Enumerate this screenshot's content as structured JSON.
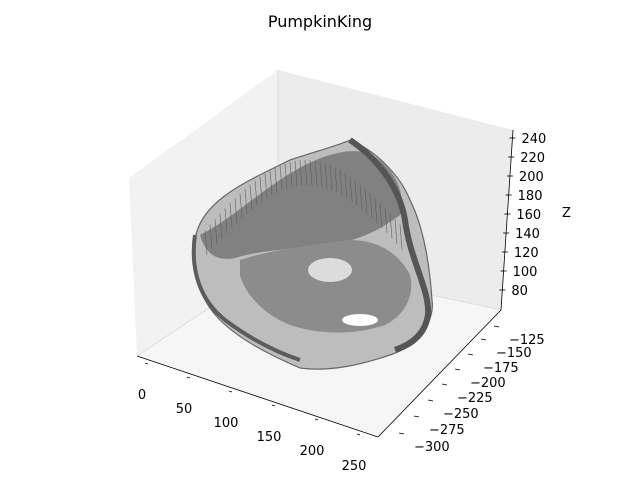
{
  "chart_data": {
    "type": "scatter",
    "projection": "3d",
    "title": "PumpkinKing",
    "xlabel": "",
    "ylabel": "",
    "zlabel": "Z",
    "xlim": [
      -10,
      255
    ],
    "ylim": [
      -310,
      -110
    ],
    "zlim": [
      70,
      245
    ],
    "x_ticks": [
      "0",
      "50",
      "100",
      "150",
      "200",
      "250"
    ],
    "y_ticks": [
      "−125",
      "−150",
      "−175",
      "−200",
      "−225",
      "−250",
      "−275",
      "−300"
    ],
    "z_ticks": [
      "80",
      "100",
      "120",
      "140",
      "160",
      "180",
      "200",
      "220",
      "240"
    ],
    "grid": false,
    "series": [
      {
        "marker_color": "#666666",
        "points_description": "3D point cloud of a carved pumpkin head surface",
        "points": [
          {
            "x": 10,
            "y": -150,
            "z": 200
          },
          {
            "x": 40,
            "y": -140,
            "z": 215
          },
          {
            "x": 80,
            "y": -135,
            "z": 225
          },
          {
            "x": 120,
            "y": -140,
            "z": 235
          },
          {
            "x": 160,
            "y": -150,
            "z": 240
          },
          {
            "x": 200,
            "y": -170,
            "z": 230
          },
          {
            "x": 225,
            "y": -200,
            "z": 200
          },
          {
            "x": 230,
            "y": -230,
            "z": 160
          },
          {
            "x": 215,
            "y": -260,
            "z": 120
          },
          {
            "x": 185,
            "y": -280,
            "z": 95
          },
          {
            "x": 140,
            "y": -285,
            "z": 85
          },
          {
            "x": 95,
            "y": -275,
            "z": 85
          },
          {
            "x": 55,
            "y": -255,
            "z": 95
          },
          {
            "x": 25,
            "y": -225,
            "z": 120
          },
          {
            "x": 10,
            "y": -190,
            "z": 160
          },
          {
            "x": 120,
            "y": -200,
            "z": 150
          },
          {
            "x": 150,
            "y": -220,
            "z": 130
          },
          {
            "x": 100,
            "y": -180,
            "z": 190
          },
          {
            "x": 180,
            "y": -240,
            "z": 110
          }
        ]
      }
    ]
  }
}
